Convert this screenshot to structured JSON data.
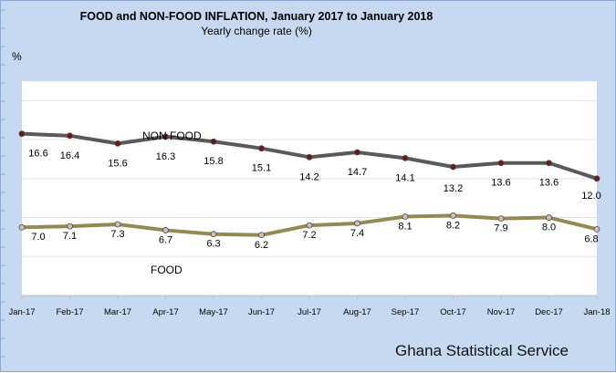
{
  "chart_data": {
    "type": "line",
    "title": "FOOD and NON-FOOD  INFLATION,  January 2017  to  January  2018",
    "subtitle": "Yearly change rate (%)",
    "y_unit": "%",
    "source": "Ghana Statistical Service",
    "categories": [
      "Jan-17",
      "Feb-17",
      "Mar-17",
      "Apr-17",
      "May-17",
      "Jun-17",
      "Jul-17",
      "Aug-17",
      "Sep-17",
      "Oct-17",
      "Nov-17",
      "Dec-17",
      "Jan-18"
    ],
    "series": [
      {
        "name": "NON FOOD",
        "values": [
          16.6,
          16.4,
          15.6,
          16.3,
          15.8,
          15.1,
          14.2,
          14.7,
          14.1,
          13.2,
          13.6,
          13.6,
          12.0
        ],
        "labels": [
          "16.6",
          "16.4",
          "15.6",
          "16.3",
          "15.8",
          "15.1",
          "14.2",
          "14.7",
          "14.1",
          "13.2",
          "13.6",
          "13.6",
          "12.0"
        ],
        "color": "#595959",
        "marker_color": "#6b1a1a"
      },
      {
        "name": "FOOD",
        "values": [
          7.0,
          7.1,
          7.3,
          6.7,
          6.3,
          6.2,
          7.2,
          7.4,
          8.1,
          8.2,
          7.9,
          8.0,
          6.8
        ],
        "labels": [
          "7.0",
          "7.1",
          "7.3",
          "6.7",
          "6.3",
          "6.2",
          "7.2",
          "7.4",
          "8.1",
          "8.2",
          "7.9",
          "8.0",
          "6.8"
        ],
        "color": "#938953",
        "marker_color": "#d9b8b8"
      }
    ],
    "ylim": [
      0,
      22
    ],
    "grid": true,
    "legend": "inline labels"
  }
}
